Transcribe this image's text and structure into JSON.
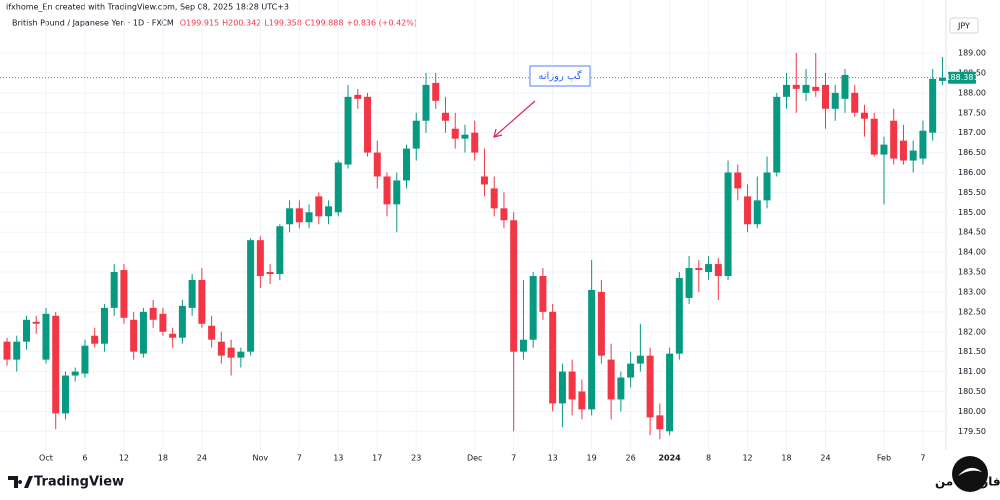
{
  "header": {
    "credit": "ifxhome_En created with TradingView.com, Sep 08, 2025 18:28 UTC+3"
  },
  "legend": {
    "symbol": "British Pound / Japanese Yen · 1D · FXCM",
    "open": "O199.915",
    "high": "H200.342",
    "low": "L199.358",
    "close": "C199.888",
    "change": "+0.836 (+0.42%)"
  },
  "currency": "JPY",
  "chart_data": {
    "type": "candlestick",
    "annotation": "گپ روزانه",
    "up_color": "#089981",
    "down_color": "#f23645",
    "categories": [
      null,
      null,
      null,
      null,
      "Oct",
      null,
      null,
      null,
      "6",
      null,
      null,
      null,
      "12",
      null,
      null,
      null,
      "18",
      null,
      null,
      null,
      "24",
      null,
      null,
      null,
      null,
      null,
      "Nov",
      null,
      null,
      null,
      "7",
      null,
      null,
      null,
      "13",
      null,
      null,
      null,
      "17",
      null,
      null,
      null,
      "23",
      null,
      null,
      null,
      null,
      null,
      "Dec",
      null,
      null,
      null,
      "7",
      null,
      null,
      null,
      "13",
      null,
      null,
      null,
      "19",
      null,
      null,
      null,
      "26",
      null,
      null,
      null,
      "2024",
      null,
      null,
      null,
      "8",
      null,
      null,
      null,
      "12",
      null,
      null,
      null,
      "18",
      null,
      null,
      null,
      "24",
      null,
      null,
      null,
      null,
      null,
      "Feb",
      null,
      null,
      null,
      "7",
      null,
      null
    ],
    "open": [
      181.75,
      181.3,
      181.75,
      182.25,
      181.3,
      182.4,
      179.95,
      180.9,
      180.95,
      181.9,
      181.7,
      182.6,
      183.55,
      182.3,
      181.45,
      182.6,
      182.45,
      181.95,
      181.85,
      182.6,
      183.3,
      182.15,
      181.75,
      181.6,
      181.35,
      181.5,
      184.3,
      183.5,
      183.45,
      184.7,
      185.1,
      184.75,
      185.4,
      184.9,
      185.0,
      186.2,
      187.95,
      187.9,
      186.5,
      185.9,
      185.2,
      185.8,
      186.6,
      187.3,
      188.25,
      187.5,
      187.1,
      186.85,
      187.0,
      185.9,
      185.6,
      185.1,
      184.8,
      181.5,
      181.8,
      183.4,
      182.5,
      180.2,
      181.0,
      180.5,
      180.05,
      183.0,
      181.3,
      180.3,
      180.85,
      181.2,
      181.4,
      179.9,
      179.5,
      181.45,
      182.85,
      183.6,
      183.5,
      183.7,
      183.4,
      186.0,
      185.4,
      184.7,
      185.3,
      186.0,
      187.9,
      188.2,
      188.0,
      188.15,
      188.2,
      187.6,
      187.85,
      188.0,
      187.5,
      187.35,
      186.45,
      187.3,
      186.8,
      186.3,
      186.35,
      187.0,
      188.3
    ],
    "high": [
      181.85,
      181.9,
      182.4,
      182.4,
      182.6,
      182.5,
      181.0,
      181.1,
      181.8,
      182.1,
      182.7,
      183.7,
      183.7,
      182.5,
      182.6,
      182.8,
      182.6,
      182.1,
      182.8,
      183.45,
      183.6,
      182.4,
      182.0,
      181.8,
      181.6,
      184.35,
      184.4,
      183.7,
      184.7,
      185.3,
      185.3,
      185.2,
      185.5,
      185.3,
      186.3,
      188.2,
      188.1,
      188.0,
      186.8,
      186.0,
      186.0,
      186.7,
      187.5,
      188.5,
      188.5,
      187.9,
      187.5,
      187.2,
      187.3,
      186.6,
      185.9,
      185.5,
      185.0,
      183.3,
      183.5,
      183.6,
      182.7,
      181.2,
      181.3,
      180.8,
      183.8,
      183.3,
      181.7,
      181.0,
      181.5,
      182.2,
      181.6,
      180.2,
      181.6,
      183.5,
      183.9,
      183.8,
      183.9,
      183.85,
      186.3,
      186.2,
      185.7,
      185.9,
      186.4,
      188.0,
      188.5,
      189.0,
      188.6,
      189.0,
      188.5,
      188.2,
      188.6,
      188.2,
      187.7,
      187.5,
      186.9,
      187.6,
      187.2,
      186.8,
      187.3,
      188.6,
      188.9
    ],
    "low": [
      181.15,
      181.0,
      181.55,
      181.95,
      181.2,
      179.55,
      179.8,
      180.75,
      180.85,
      181.6,
      181.5,
      182.4,
      182.2,
      181.3,
      181.35,
      182.1,
      181.9,
      181.6,
      181.7,
      182.4,
      182.1,
      181.6,
      181.2,
      180.9,
      181.1,
      181.4,
      183.1,
      183.2,
      183.3,
      184.5,
      184.6,
      184.6,
      184.7,
      184.7,
      184.9,
      186.1,
      187.6,
      186.4,
      185.6,
      184.9,
      184.5,
      185.6,
      186.3,
      187.0,
      187.6,
      187.0,
      186.6,
      186.5,
      186.3,
      185.4,
      184.9,
      184.6,
      179.5,
      181.3,
      181.6,
      182.3,
      180.0,
      179.6,
      179.9,
      179.8,
      179.9,
      181.2,
      179.8,
      180.0,
      180.6,
      181.0,
      179.4,
      179.3,
      179.4,
      181.3,
      182.7,
      183.0,
      183.3,
      182.8,
      183.3,
      185.3,
      184.5,
      184.6,
      185.1,
      185.9,
      187.6,
      187.5,
      187.8,
      187.9,
      187.1,
      187.3,
      187.5,
      187.4,
      186.9,
      186.4,
      185.2,
      186.2,
      186.2,
      186.0,
      186.2,
      186.8,
      188.2
    ],
    "close": [
      181.3,
      181.75,
      182.3,
      182.2,
      182.45,
      179.95,
      180.9,
      181.0,
      181.65,
      181.7,
      182.6,
      183.5,
      182.35,
      181.5,
      182.5,
      182.3,
      182.0,
      181.85,
      182.65,
      183.3,
      182.2,
      181.8,
      181.4,
      181.35,
      181.5,
      184.3,
      183.4,
      183.45,
      184.65,
      185.1,
      184.75,
      185.0,
      184.9,
      185.15,
      186.25,
      187.9,
      187.85,
      186.5,
      185.9,
      185.2,
      185.8,
      186.6,
      187.3,
      188.2,
      187.8,
      187.3,
      186.85,
      186.95,
      186.5,
      185.7,
      185.1,
      184.8,
      181.5,
      181.8,
      183.4,
      182.5,
      180.2,
      181.0,
      180.3,
      180.05,
      183.05,
      181.4,
      180.3,
      180.85,
      181.2,
      181.4,
      179.85,
      179.55,
      181.45,
      183.35,
      183.6,
      183.55,
      183.7,
      183.4,
      186.0,
      185.6,
      184.7,
      185.3,
      186.0,
      187.9,
      188.2,
      188.1,
      188.2,
      188.05,
      187.6,
      188.0,
      188.45,
      187.5,
      187.35,
      186.45,
      186.7,
      186.35,
      186.3,
      186.55,
      187.05,
      188.35,
      188.381
    ],
    "last_label": "188.381",
    "ylim": [
      179.03,
      189.83
    ],
    "yticks": [
      {
        "value": 179.5,
        "label": "179.50"
      },
      {
        "value": 180,
        "label": "180.00"
      },
      {
        "value": 180.5,
        "label": "180.50"
      },
      {
        "value": 181,
        "label": "181.00"
      },
      {
        "value": 181.5,
        "label": "181.50"
      },
      {
        "value": 182,
        "label": "182.00"
      },
      {
        "value": 182.5,
        "label": "182.50"
      },
      {
        "value": 183,
        "label": "183.00"
      },
      {
        "value": 183.5,
        "label": "183.50"
      },
      {
        "value": 184,
        "label": "184.00"
      },
      {
        "value": 184.5,
        "label": "184.50"
      },
      {
        "value": 185,
        "label": "185.00"
      },
      {
        "value": 185.5,
        "label": "185.50"
      },
      {
        "value": 186,
        "label": "186.00"
      },
      {
        "value": 186.5,
        "label": "186.50"
      },
      {
        "value": 187,
        "label": "187.00"
      },
      {
        "value": 187.5,
        "label": "187.50"
      },
      {
        "value": 188,
        "label": "188.00"
      },
      {
        "value": 188.5,
        "label": "188.50"
      },
      {
        "value": 189,
        "label": "189.00"
      }
    ]
  },
  "footer": {
    "brand": "TradingView",
    "site": "خانه فارکس من"
  }
}
